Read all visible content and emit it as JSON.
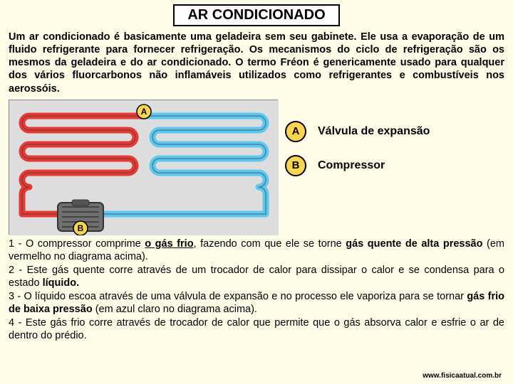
{
  "title": "AR CONDICIONADO",
  "intro": "Um ar condicionado é basicamente uma geladeira sem seu gabinete. Ele usa a evaporação de um fluido refrigerante para fornecer refrigeração. Os mecanismos do ciclo de refrigeração são os mesmos da geladeira e do ar condicionado. O termo Fréon é genericamente usado para qualquer dos vários fluorcarbonos não inflamáveis utilizados como refrigerantes e combustíveis nos aerossóis.",
  "legend": {
    "A": {
      "letter": "A",
      "label": "Válvula de expansão"
    },
    "B": {
      "letter": "B",
      "label": "Compressor"
    }
  },
  "diagram": {
    "type": "infographic",
    "background_color": "#dddddd",
    "hot_pipe_color": "#e53935",
    "cold_pipe_color": "#5bc9ef",
    "pipe_stroke": "#3a3a3a",
    "pipe_stroke_width": 1.2,
    "badge_fill": "#ffd54f",
    "badge_stroke": "#000000",
    "compressor_fill": "#6f6f6f",
    "compressor_stroke": "#333333",
    "coil_rows": 5
  },
  "steps": {
    "s1_pre": "1 - O compressor comprime ",
    "s1_b1": "o gás frio",
    "s1_mid": ", fazendo com que ele se torne ",
    "s1_b2": "gás quente de alta pressão",
    "s1_post": " (em vermelho no diagrama acima).",
    "s2_pre": "2 - Este gás quente corre através de um trocador de calor para dissipar o calor e se condensa para o estado ",
    "s2_b1": "líquido.",
    "s3_pre": "3 - O líquido escoa através de uma válvula de expansão e no processo ele vaporiza para se tornar ",
    "s3_b1": "gás frio de baixa pressão",
    "s3_post": " (em azul claro no diagrama acima).",
    "s4": "4 - Este gás frio corre através de trocador de calor que permite que o gás absorva calor e esfrie o ar de dentro do prédio."
  },
  "footer": "www.fisicaatual.com.br"
}
